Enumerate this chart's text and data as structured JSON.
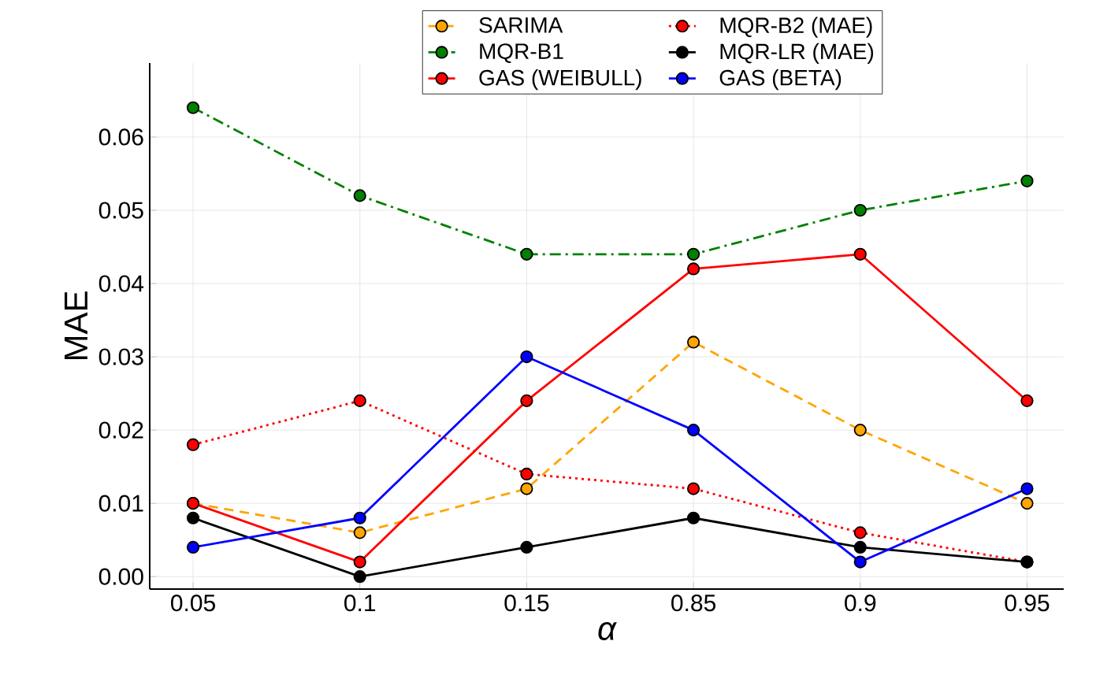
{
  "chart_data": {
    "type": "line",
    "xlabel": "α",
    "ylabel": "MAE",
    "categories": [
      "0.05",
      "0.1",
      "0.15",
      "0.85",
      "0.9",
      "0.95"
    ],
    "ylim": [
      -0.0017,
      0.0701
    ],
    "yticks": [
      {
        "value": 0,
        "label": "0.00"
      },
      {
        "value": 0.01,
        "label": "0.01"
      },
      {
        "value": 0.02,
        "label": "0.02"
      },
      {
        "value": 0.03,
        "label": "0.03"
      },
      {
        "value": 0.04,
        "label": "0.04"
      },
      {
        "value": 0.05,
        "label": "0.05"
      },
      {
        "value": 0.06,
        "label": "0.06"
      }
    ],
    "grid": true,
    "legend": "top",
    "marker": "circle",
    "series": [
      {
        "name": "SARIMA",
        "color": "#ffa500",
        "line_style": "dashed",
        "values": [
          0.01,
          0.006,
          0.012,
          0.032,
          0.02,
          0.01
        ]
      },
      {
        "name": "MQR-B2 (MAE)",
        "color": "#ff0000",
        "line_style": "dotted",
        "values": [
          0.018,
          0.024,
          0.014,
          0.012,
          0.006,
          0.002
        ]
      },
      {
        "name": "MQR-B1",
        "color": "#008000",
        "line_style": "dashdot",
        "values": [
          0.064,
          0.052,
          0.044,
          0.044,
          0.05,
          0.054
        ]
      },
      {
        "name": "MQR-LR (MAE)",
        "color": "#000000",
        "line_style": "solid",
        "values": [
          0.008,
          0.0,
          0.004,
          0.008,
          0.004,
          0.002
        ]
      },
      {
        "name": "GAS (WEIBULL)",
        "color": "#ff0000",
        "line_style": "solid",
        "values": [
          0.01,
          0.002,
          0.024,
          0.042,
          0.044,
          0.024
        ]
      },
      {
        "name": "GAS (BETA)",
        "color": "#0000ff",
        "line_style": "solid",
        "values": [
          0.004,
          0.008,
          0.03,
          0.02,
          0.002,
          0.012
        ]
      }
    ]
  }
}
